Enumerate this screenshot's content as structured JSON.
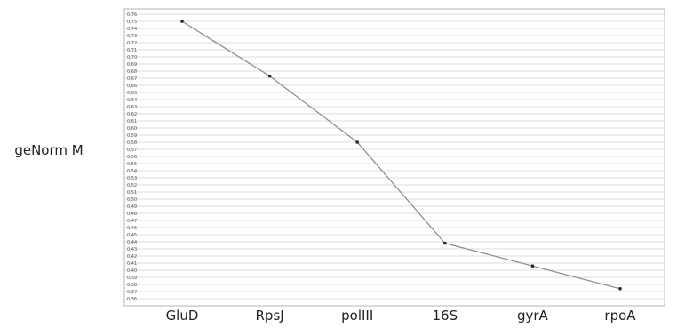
{
  "chart_data": {
    "type": "line",
    "title": "",
    "ylabel": "geNorm M",
    "xlabel": "",
    "categories": [
      "GluD",
      "RpsJ",
      "polIII",
      "16S",
      "gyrA",
      "rpoA"
    ],
    "series": [
      {
        "values": [
          0.75,
          0.673,
          0.58,
          0.438,
          0.406,
          0.374
        ]
      }
    ],
    "ylim": [
      0.36,
      0.76
    ],
    "yticks": [
      "0,36",
      "0,37",
      "0,38",
      "0,39",
      "0,40",
      "0,41",
      "0,42",
      "0,43",
      "0,44",
      "0,45",
      "0,46",
      "0,47",
      "0,48",
      "0,49",
      "0,50",
      "0,51",
      "0,52",
      "0,53",
      "0,54",
      "0,55",
      "0,56",
      "0,57",
      "0,58",
      "0,59",
      "0,60",
      "0,61",
      "0,62",
      "0,63",
      "0,64",
      "0,65",
      "0,66",
      "0,67",
      "0,68",
      "0,69",
      "0,70",
      "0,71",
      "0,72",
      "0,73",
      "0,74",
      "0,75",
      "0,76"
    ],
    "grid": true,
    "line_color": "#8a8a8a",
    "marker_color": "#222222",
    "grid_color": "#dcdcdc"
  }
}
